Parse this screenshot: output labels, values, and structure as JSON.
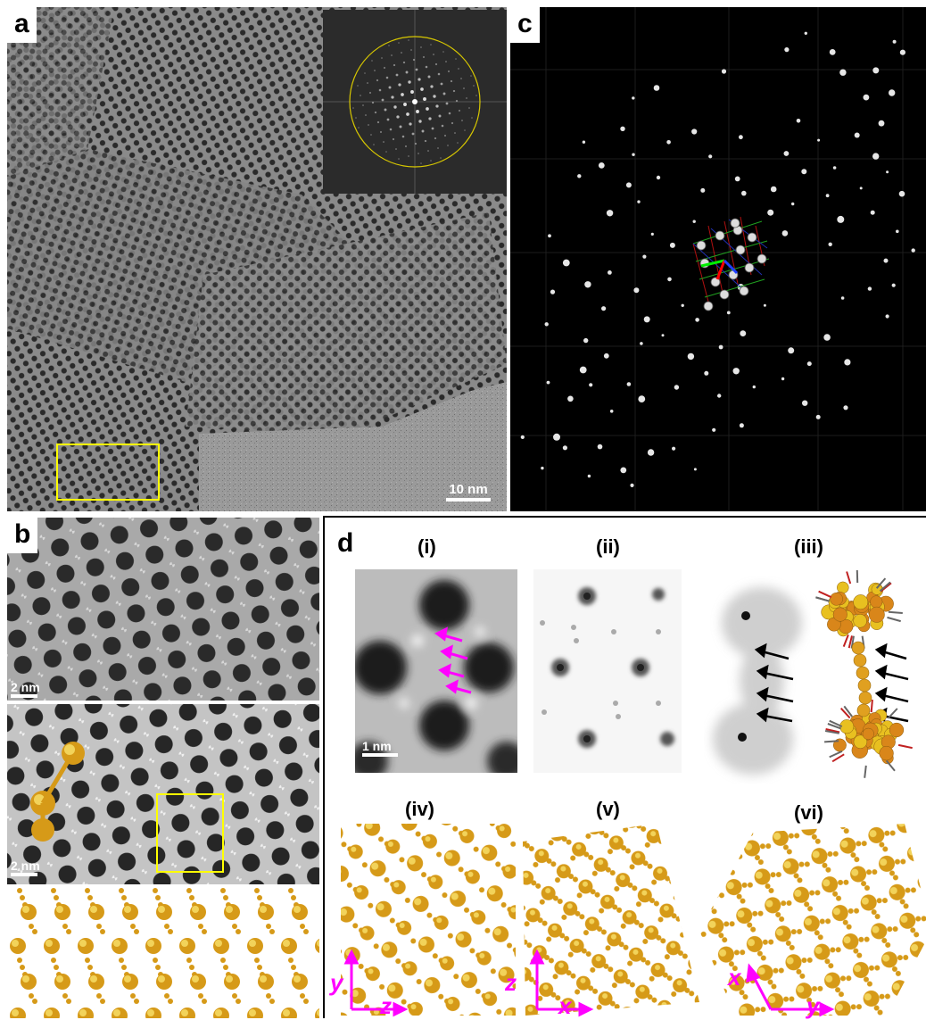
{
  "panels": {
    "a": {
      "label": "a",
      "scale_bar": "10 nm"
    },
    "b": {
      "label": "b",
      "scale_bar_top": "2 nm",
      "scale_bar_mid": "2 nm"
    },
    "c": {
      "label": "c"
    },
    "d": {
      "label": "d",
      "sub": [
        "(i)",
        "(ii)",
        "(iii)",
        "(iv)",
        "(v)",
        "(vi)"
      ],
      "scale_bar": "1 nm",
      "axes": {
        "iv": {
          "vertical": "y",
          "horizontal": "z"
        },
        "v": {
          "vertical": "z",
          "horizontal": "x"
        },
        "vi": {
          "diagonal": "x",
          "horizontal": "y"
        }
      }
    }
  },
  "colors": {
    "highlight_box": "#ffff00",
    "arrow_magenta": "#ff00ff",
    "gold_atoms": "#e8b21a"
  }
}
